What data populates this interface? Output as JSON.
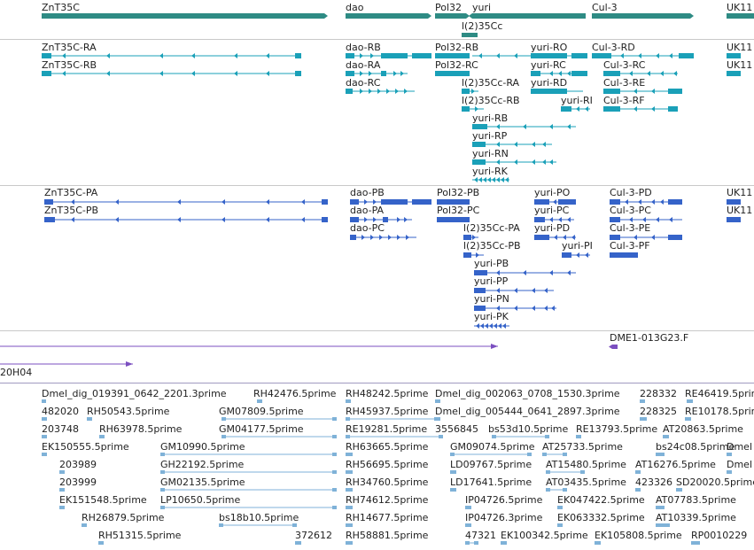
{
  "colors": {
    "gene": "#2e8b84",
    "transcript_flybase": "#1aa0b8",
    "transcript_refseq": "#3563c9",
    "clone": "#7b4fc0",
    "est": "#7fb2d8",
    "separator": "#c9c9c9",
    "separator_dark": "#a09ac0"
  },
  "genes": [
    {
      "label": "ZnT35C"
    },
    {
      "label": "dao"
    },
    {
      "label": "Pol32"
    },
    {
      "label": "yuri"
    },
    {
      "label": "Cul-3"
    },
    {
      "label": "UK11"
    },
    {
      "label": "l(2)35Cc"
    }
  ],
  "flybase_transcripts": [
    {
      "label": "ZnT35C-RA"
    },
    {
      "label": "ZnT35C-RB"
    },
    {
      "label": "dao-RB"
    },
    {
      "label": "dao-RA"
    },
    {
      "label": "dao-RC"
    },
    {
      "label": "Pol32-RB"
    },
    {
      "label": "Pol32-RC"
    },
    {
      "label": "l(2)35Cc-RA"
    },
    {
      "label": "l(2)35Cc-RB"
    },
    {
      "label": "yuri-RO"
    },
    {
      "label": "yuri-RC"
    },
    {
      "label": "yuri-RD"
    },
    {
      "label": "yuri-RI"
    },
    {
      "label": "yuri-RB"
    },
    {
      "label": "yuri-RP"
    },
    {
      "label": "yuri-RN"
    },
    {
      "label": "yuri-RK"
    },
    {
      "label": "Cul-3-RD"
    },
    {
      "label": "Cul-3-RC"
    },
    {
      "label": "Cul-3-RE"
    },
    {
      "label": "Cul-3-RF"
    },
    {
      "label": "UK11"
    },
    {
      "label": "UK11"
    }
  ],
  "refseq_transcripts": [
    {
      "label": "ZnT35C-PA"
    },
    {
      "label": "ZnT35C-PB"
    },
    {
      "label": "dao-PB"
    },
    {
      "label": "dao-PA"
    },
    {
      "label": "dao-PC"
    },
    {
      "label": "Pol32-PB"
    },
    {
      "label": "Pol32-PC"
    },
    {
      "label": "l(2)35Cc-PA"
    },
    {
      "label": "l(2)35Cc-PB"
    },
    {
      "label": "yuri-PO"
    },
    {
      "label": "yuri-PC"
    },
    {
      "label": "yuri-PD"
    },
    {
      "label": "yuri-PI"
    },
    {
      "label": "yuri-PB"
    },
    {
      "label": "yuri-PP"
    },
    {
      "label": "yuri-PN"
    },
    {
      "label": "yuri-PK"
    },
    {
      "label": "Cul-3-PD"
    },
    {
      "label": "Cul-3-PC"
    },
    {
      "label": "Cul-3-PE"
    },
    {
      "label": "Cul-3-PF"
    },
    {
      "label": "UK11"
    },
    {
      "label": "UK11"
    }
  ],
  "clones": [
    {
      "label": "DME1-013G23.F"
    },
    {
      "label": "20H04"
    }
  ],
  "ests": [
    {
      "label": "Dmel_dig_019391_0642_2201.3prime"
    },
    {
      "label": "RH42476.5prime"
    },
    {
      "label": "RH48242.5prime"
    },
    {
      "label": "Dmel_dig_002063_0708_1530.3prime"
    },
    {
      "label": "228332"
    },
    {
      "label": "RE46419.5prime"
    },
    {
      "label": "482020"
    },
    {
      "label": "RH50543.5prime"
    },
    {
      "label": "GM07809.5prime"
    },
    {
      "label": "RH45937.5prime"
    },
    {
      "label": "Dmel_dig_005444_0641_2897.3prime"
    },
    {
      "label": "228325"
    },
    {
      "label": "RE10178.5prime"
    },
    {
      "label": "203748"
    },
    {
      "label": "RH63978.5prime"
    },
    {
      "label": "GM04177.5prime"
    },
    {
      "label": "RE19281.5prime"
    },
    {
      "label": "3556845"
    },
    {
      "label": "bs53d10.5prime"
    },
    {
      "label": "RE13793.5prime"
    },
    {
      "label": "AT20863.5prime"
    },
    {
      "label": "EK150555.5prime"
    },
    {
      "label": "GM10990.5prime"
    },
    {
      "label": "RH63665.5prime"
    },
    {
      "label": "GM09074.5prime"
    },
    {
      "label": "AT25733.5prime"
    },
    {
      "label": "bs24c08.5prime"
    },
    {
      "label": "Dmel"
    },
    {
      "label": "203989"
    },
    {
      "label": "GH22192.5prime"
    },
    {
      "label": "RH56695.5prime"
    },
    {
      "label": "LD09767.5prime"
    },
    {
      "label": "AT15480.5prime"
    },
    {
      "label": "AT16276.5prime"
    },
    {
      "label": "Dmel"
    },
    {
      "label": "203999"
    },
    {
      "label": "GM02135.5prime"
    },
    {
      "label": "RH34760.5prime"
    },
    {
      "label": "LD17641.5prime"
    },
    {
      "label": "AT03435.5prime"
    },
    {
      "label": "423326"
    },
    {
      "label": "SD20020.5prime"
    },
    {
      "label": "EK151548.5prime"
    },
    {
      "label": "LP10650.5prime"
    },
    {
      "label": "RH74612.5prime"
    },
    {
      "label": "IP04726.5prime"
    },
    {
      "label": "EK047422.5prime"
    },
    {
      "label": "AT07783.5prime"
    },
    {
      "label": "RH26879.5prime"
    },
    {
      "label": "bs18b10.5prime"
    },
    {
      "label": "RH14677.5prime"
    },
    {
      "label": "IP04726.3prime"
    },
    {
      "label": "EK063332.5prime"
    },
    {
      "label": "AT10339.5prime"
    },
    {
      "label": "RH51315.5prime"
    },
    {
      "label": "372612"
    },
    {
      "label": "RH58881.5prime"
    },
    {
      "label": "47321"
    },
    {
      "label": "EK100342.5prime"
    },
    {
      "label": "EK105808.5prime"
    },
    {
      "label": "RP0010229"
    }
  ]
}
